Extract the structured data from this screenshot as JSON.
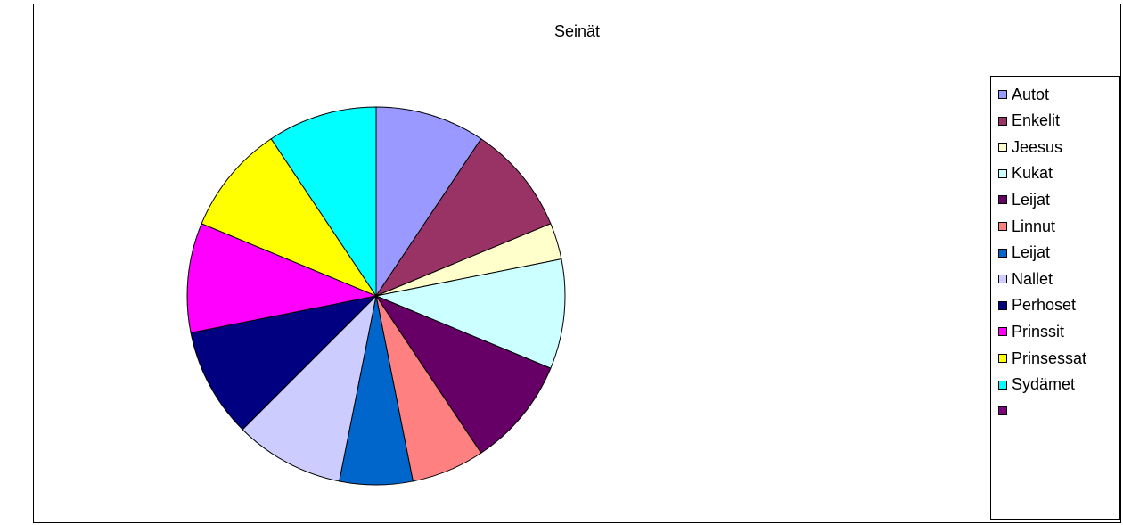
{
  "chart_data": {
    "type": "pie",
    "title": "Seinät",
    "categories": [
      "Autot",
      "Enkelit",
      "Jeesus",
      "Kukat",
      "Leijat",
      "Linnut",
      "Leijat",
      "Nallet",
      "Perhoset",
      "Prinssit",
      "Prinsessat",
      "Sydämet",
      ""
    ],
    "values": [
      3,
      3,
      1,
      3,
      3,
      2,
      2,
      3,
      3,
      3,
      3,
      3,
      0
    ],
    "colors": [
      "#9999ff",
      "#993366",
      "#ffffcc",
      "#ccffff",
      "#660066",
      "#ff8080",
      "#0066cc",
      "#ccccff",
      "#000080",
      "#ff00ff",
      "#ffff00",
      "#00ffff",
      "#800080"
    ],
    "start_angle_deg": 0,
    "direction": "clockwise",
    "legend_position": "right"
  }
}
